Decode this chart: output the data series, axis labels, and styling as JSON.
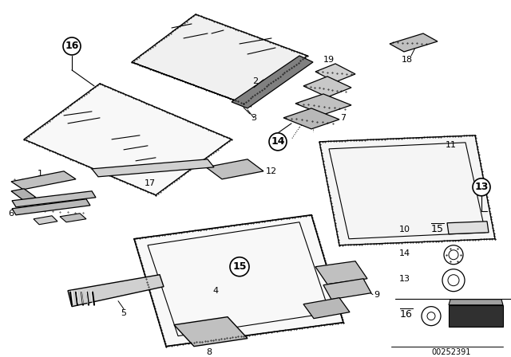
{
  "background_color": "#ffffff",
  "line_color": "#000000",
  "figsize": [
    6.4,
    4.48
  ],
  "dpi": 100,
  "footer_text": "00252391",
  "label_fontsize": 8,
  "circle_fontsize": 8,
  "stipple_color": "#555555"
}
